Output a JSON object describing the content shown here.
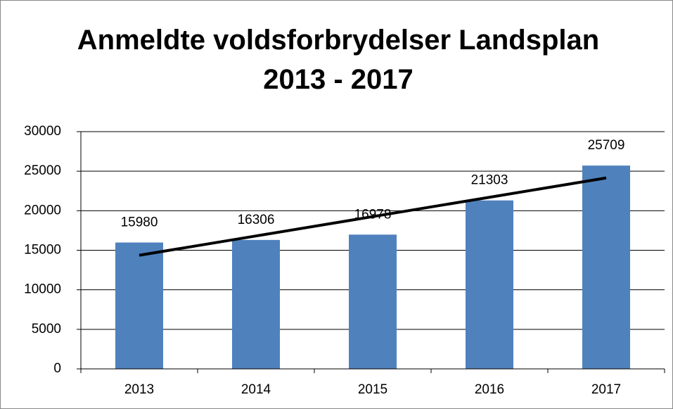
{
  "chart_data": {
    "type": "bar",
    "title": "Anmeldte voldsforbrydelser Landsplan 2013 - 2017",
    "categories": [
      "2013",
      "2014",
      "2015",
      "2016",
      "2017"
    ],
    "values": [
      15980,
      16306,
      16978,
      21303,
      25709
    ],
    "color": "#4f81bd",
    "trendline": "linear",
    "trendline_color": "#000000",
    "ylim": [
      0,
      30000
    ],
    "yticks": [
      0,
      5000,
      10000,
      15000,
      20000,
      25000,
      30000
    ],
    "grid": true
  }
}
